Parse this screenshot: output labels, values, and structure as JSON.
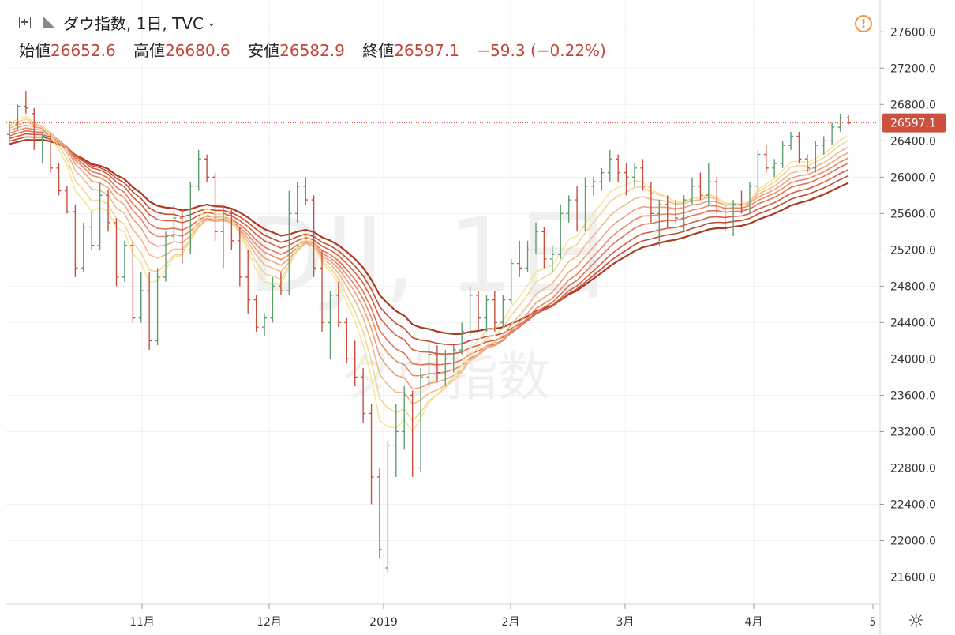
{
  "header": {
    "symbol": "ダウ指数, 1日, TVC",
    "open_label": "始値",
    "open": "26652.6",
    "high_label": "高値",
    "high": "26680.6",
    "low_label": "安値",
    "low": "26582.9",
    "close_label": "終値",
    "close": "26597.1",
    "change": "−59.3 (−0.22%)"
  },
  "watermark": {
    "line1": "DJI, 1日",
    "line2": "ダウ指数"
  },
  "price_tag": "26597.1",
  "colors": {
    "up": "#5f9e6e",
    "down": "#c9503f",
    "price_tag": "#cd4f3e",
    "alert": "#f0953a"
  },
  "chart_data": {
    "type": "candlestick",
    "ylim": [
      21300,
      27950
    ],
    "y_ticks": [
      "27600.0",
      "27200.0",
      "26800.0",
      "26400.0",
      "26000.0",
      "25600.0",
      "25200.0",
      "24800.0",
      "24400.0",
      "24000.0",
      "23600.0",
      "23200.0",
      "22800.0",
      "22400.0",
      "22000.0",
      "21600.0"
    ],
    "x_ticks": [
      "11月",
      "12月",
      "2019",
      "2月",
      "3月",
      "4月",
      "5"
    ],
    "ohlc": [
      [
        26470,
        26620,
        26400,
        26600
      ],
      [
        26580,
        26800,
        26520,
        26780
      ],
      [
        26780,
        26950,
        26700,
        26760
      ],
      [
        26700,
        26760,
        26300,
        26400
      ],
      [
        26400,
        26500,
        26150,
        26450
      ],
      [
        26450,
        26480,
        26050,
        26100
      ],
      [
        26100,
        26150,
        25800,
        25850
      ],
      [
        25850,
        25900,
        25600,
        25620
      ],
      [
        25620,
        25700,
        24900,
        25000
      ],
      [
        25000,
        25500,
        24950,
        25450
      ],
      [
        25450,
        25620,
        25200,
        25250
      ],
      [
        25250,
        25950,
        25200,
        25800
      ],
      [
        25800,
        25860,
        25400,
        25500
      ],
      [
        25500,
        25550,
        24800,
        24900
      ],
      [
        24900,
        25300,
        24850,
        25250
      ],
      [
        25250,
        25300,
        24400,
        24450
      ],
      [
        24450,
        24950,
        24400,
        24750
      ],
      [
        24750,
        24950,
        24100,
        24200
      ],
      [
        24200,
        25000,
        24150,
        24900
      ],
      [
        24900,
        25400,
        24850,
        25350
      ],
      [
        25350,
        25700,
        25300,
        25550
      ],
      [
        25550,
        25650,
        25050,
        25200
      ],
      [
        25200,
        25950,
        25150,
        25900
      ],
      [
        25900,
        26300,
        25850,
        26200
      ],
      [
        26200,
        26250,
        25950,
        26000
      ],
      [
        26000,
        26050,
        25300,
        25400
      ],
      [
        25400,
        25700,
        25000,
        25600
      ],
      [
        25600,
        25650,
        25200,
        25300
      ],
      [
        25300,
        25450,
        24800,
        24900
      ],
      [
        24900,
        25200,
        24500,
        24650
      ],
      [
        24650,
        24700,
        24300,
        24350
      ],
      [
        24350,
        24500,
        24250,
        24450
      ],
      [
        24450,
        24900,
        24400,
        24800
      ],
      [
        24800,
        24950,
        24700,
        24750
      ],
      [
        24750,
        25850,
        24700,
        25600
      ],
      [
        25600,
        25950,
        25500,
        25900
      ],
      [
        25900,
        26000,
        25700,
        25750
      ],
      [
        25750,
        25800,
        24900,
        25000
      ],
      [
        25000,
        25200,
        24300,
        24400
      ],
      [
        24400,
        24750,
        24000,
        24700
      ],
      [
        24700,
        24850,
        24350,
        24400
      ],
      [
        24400,
        24450,
        23950,
        24000
      ],
      [
        24000,
        24200,
        23700,
        23800
      ],
      [
        23800,
        23900,
        23300,
        23400
      ],
      [
        23400,
        23500,
        22400,
        22700
      ],
      [
        22700,
        22800,
        21800,
        21900
      ],
      [
        21700,
        23100,
        21650,
        23050
      ],
      [
        23050,
        23500,
        22700,
        23200
      ],
      [
        23200,
        23700,
        23000,
        23600
      ],
      [
        23600,
        23650,
        22700,
        22800
      ],
      [
        22800,
        23900,
        22750,
        23800
      ],
      [
        23800,
        24200,
        23700,
        24050
      ],
      [
        24050,
        24150,
        23750,
        23850
      ],
      [
        23850,
        24100,
        23700,
        24000
      ],
      [
        24000,
        24150,
        23850,
        24100
      ],
      [
        24100,
        24400,
        24050,
        24300
      ],
      [
        24300,
        24800,
        24250,
        24700
      ],
      [
        24700,
        24750,
        24300,
        24450
      ],
      [
        24450,
        24700,
        24300,
        24650
      ],
      [
        24650,
        24750,
        24300,
        24400
      ],
      [
        24400,
        24700,
        24350,
        24650
      ],
      [
        24650,
        25100,
        24600,
        25050
      ],
      [
        25050,
        25300,
        24900,
        25000
      ],
      [
        25000,
        25300,
        24950,
        25200
      ],
      [
        25200,
        25500,
        25150,
        25400
      ],
      [
        25400,
        25450,
        25000,
        25100
      ],
      [
        25100,
        25250,
        24950,
        25150
      ],
      [
        25150,
        25700,
        25100,
        25600
      ],
      [
        25600,
        25800,
        25500,
        25750
      ],
      [
        25750,
        25900,
        25400,
        25450
      ],
      [
        25450,
        26000,
        25400,
        25900
      ],
      [
        25900,
        26000,
        25800,
        25950
      ],
      [
        25950,
        26100,
        25850,
        26050
      ],
      [
        26050,
        26300,
        25950,
        26200
      ],
      [
        26200,
        26250,
        25950,
        26050
      ],
      [
        26050,
        26150,
        25800,
        26000
      ],
      [
        26000,
        26150,
        25900,
        26100
      ],
      [
        26100,
        26200,
        25850,
        25900
      ],
      [
        25900,
        25950,
        25500,
        25600
      ],
      [
        25600,
        25750,
        25250,
        25700
      ],
      [
        25700,
        25800,
        25450,
        25650
      ],
      [
        25650,
        25750,
        25500,
        25550
      ],
      [
        25550,
        25800,
        25400,
        25750
      ],
      [
        25750,
        26000,
        25700,
        25900
      ],
      [
        25900,
        26050,
        25750,
        25800
      ],
      [
        25800,
        26150,
        25700,
        25950
      ],
      [
        25950,
        26000,
        25600,
        25650
      ],
      [
        25650,
        25700,
        25400,
        25450
      ],
      [
        25450,
        25750,
        25350,
        25700
      ],
      [
        25700,
        25850,
        25600,
        25650
      ],
      [
        25650,
        25950,
        25600,
        25900
      ],
      [
        25900,
        26300,
        25850,
        26250
      ],
      [
        26250,
        26350,
        26050,
        26100
      ],
      [
        26100,
        26200,
        26000,
        26150
      ],
      [
        26150,
        26400,
        26100,
        26350
      ],
      [
        26350,
        26500,
        26300,
        26450
      ],
      [
        26450,
        26500,
        26150,
        26200
      ],
      [
        26200,
        26250,
        26050,
        26100
      ],
      [
        26100,
        26400,
        26050,
        26350
      ],
      [
        26350,
        26450,
        26250,
        26400
      ],
      [
        26400,
        26600,
        26350,
        26550
      ],
      [
        26550,
        26700,
        26500,
        26650
      ],
      [
        26652.6,
        26680.6,
        26582.9,
        26597.1
      ]
    ]
  }
}
